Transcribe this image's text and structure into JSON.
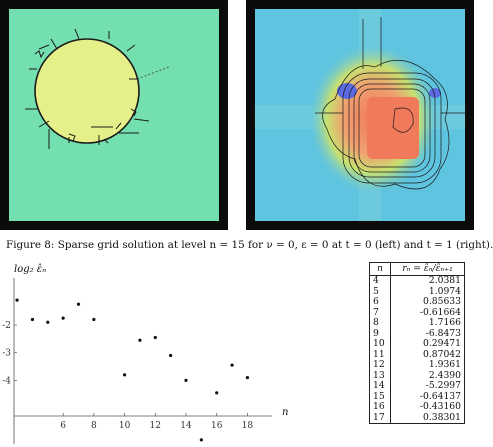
{
  "figure": {
    "caption": "Figure 8: Sparse grid solution at level n = 15 for ν = 0, ε = 0 at t = 0 (left) and t = 1 (right).",
    "left_panel": {
      "background": "#74e0b0",
      "disc": "#e6f08a",
      "frame": "#0b0b0b"
    },
    "right_panel": {
      "background": "#5fc4e0",
      "peak": "#f07a5a",
      "ring": "#f6d86a",
      "dip": "#5a6ae0"
    }
  },
  "chart_data": {
    "type": "scatter",
    "ylabel": "log₂ ε̂ₙ",
    "xlabel": "n",
    "xlim": [
      2.8,
      19.6
    ],
    "ylim": [
      -6.3,
      -0.3
    ],
    "xticks": [
      6,
      8,
      10,
      12,
      14,
      16,
      18
    ],
    "yticks": [
      -2,
      -3,
      -4
    ],
    "points": [
      {
        "x": 3,
        "y": -1.1
      },
      {
        "x": 4,
        "y": -1.8
      },
      {
        "x": 5,
        "y": -1.9
      },
      {
        "x": 6,
        "y": -1.75
      },
      {
        "x": 7,
        "y": -1.25
      },
      {
        "x": 8,
        "y": -1.8
      },
      {
        "x": 10,
        "y": -3.8
      },
      {
        "x": 11,
        "y": -2.55
      },
      {
        "x": 12,
        "y": -2.45
      },
      {
        "x": 13,
        "y": -3.1
      },
      {
        "x": 14,
        "y": -4.0
      },
      {
        "x": 15,
        "y": -6.15
      },
      {
        "x": 16,
        "y": -4.45
      },
      {
        "x": 17,
        "y": -3.45
      },
      {
        "x": 18,
        "y": -3.9
      }
    ]
  },
  "table": {
    "headers": [
      "n",
      "rₙ = ε̂ₙ/ε̂ₙ₊₁"
    ],
    "rows": [
      {
        "n": "4",
        "r": "2.0381"
      },
      {
        "n": "5",
        "r": "1.0974"
      },
      {
        "n": "6",
        "r": "0.85633"
      },
      {
        "n": "7",
        "r": "-0.61664"
      },
      {
        "n": "8",
        "r": "1.7166"
      },
      {
        "n": "9",
        "r": "-6.8473"
      },
      {
        "n": "10",
        "r": "0.29471"
      },
      {
        "n": "11",
        "r": "0.87042"
      },
      {
        "n": "12",
        "r": "1.9361"
      },
      {
        "n": "13",
        "r": "2.4390"
      },
      {
        "n": "14",
        "r": "-5.2997"
      },
      {
        "n": "15",
        "r": "-0.64137"
      },
      {
        "n": "16",
        "r": "-0.43160"
      },
      {
        "n": "17",
        "r": "0.38301"
      }
    ]
  }
}
